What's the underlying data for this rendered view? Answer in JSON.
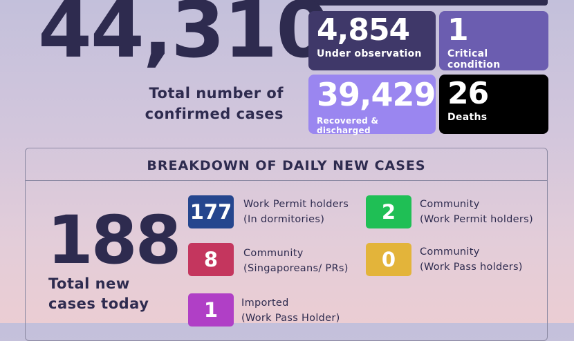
{
  "total": {
    "value": "44,310",
    "caption_line1": "Total number of",
    "caption_line2": "confirmed cases"
  },
  "stats": {
    "observation": {
      "value": "4,854",
      "label": "Under observation",
      "color": "#3f3869"
    },
    "critical": {
      "value": "1",
      "label": "Critical condition",
      "color": "#6b5db0"
    },
    "recovered": {
      "value": "39,429",
      "label": "Recovered & discharged",
      "color": "#9a86f0"
    },
    "deaths": {
      "value": "26",
      "label": "Deaths",
      "color": "#000000"
    }
  },
  "breakdown": {
    "title": "BREAKDOWN OF DAILY NEW CASES",
    "today_value": "188",
    "today_line1": "Total new",
    "today_line2": "cases today",
    "items": {
      "work_permit": {
        "value": "177",
        "line1": "Work Permit holders",
        "line2": "(In dormitories)",
        "color": "#25468e"
      },
      "community_wp": {
        "value": "2",
        "line1": "Community",
        "line2": "(Work Permit holders)",
        "color": "#1fbf55"
      },
      "community_sg": {
        "value": "8",
        "line1": "Community",
        "line2": "(Singaporeans/ PRs)",
        "color": "#c4365e"
      },
      "community_wpass": {
        "value": "0",
        "line1": "Community",
        "line2": "(Work Pass holders)",
        "color": "#e3b43a"
      },
      "imported": {
        "value": "1",
        "line1": "Imported",
        "line2": "(Work Pass Holder)",
        "color": "#b03fc6"
      }
    }
  }
}
